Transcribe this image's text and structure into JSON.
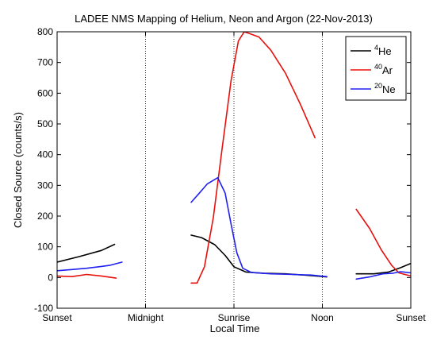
{
  "chart_data": {
    "type": "line",
    "title": "LADEE NMS Mapping of Helium, Neon and Argon (22-Nov-2013)",
    "xlabel": "Local Time",
    "ylabel": "Closed Source (counts/s)",
    "xlim": [
      0,
      24
    ],
    "ylim": [
      -100,
      800
    ],
    "xticks": [
      {
        "x": 0,
        "label": "Sunset"
      },
      {
        "x": 6,
        "label": "Midnight"
      },
      {
        "x": 12,
        "label": "Sunrise"
      },
      {
        "x": 18,
        "label": "Noon"
      },
      {
        "x": 24,
        "label": "Sunset"
      }
    ],
    "yticks": [
      -100,
      0,
      100,
      200,
      300,
      400,
      500,
      600,
      700,
      800
    ],
    "vertical_grid": true,
    "legend": "top-right",
    "series": [
      {
        "name": "4He",
        "sup": "4",
        "element": "He",
        "color": "#000000",
        "segments": [
          [
            [
              0,
              50
            ],
            [
              1.5,
              68
            ],
            [
              3,
              88
            ],
            [
              3.9,
              108
            ]
          ],
          [
            [
              9.1,
              138
            ],
            [
              9.8,
              130
            ],
            [
              10.7,
              107
            ],
            [
              11.4,
              72
            ],
            [
              12,
              35
            ],
            [
              12.8,
              18
            ],
            [
              14,
              14
            ],
            [
              15.5,
              12
            ],
            [
              17,
              7
            ],
            [
              18.3,
              2
            ]
          ],
          [
            [
              20.3,
              12
            ],
            [
              21.5,
              12
            ],
            [
              22.5,
              18
            ],
            [
              23.3,
              32
            ],
            [
              24.1,
              48
            ]
          ]
        ]
      },
      {
        "name": "40Ar",
        "sup": "40",
        "element": "Ar",
        "color": "#e8100c",
        "segments": [
          [
            [
              0,
              5
            ],
            [
              1,
              3
            ],
            [
              2,
              10
            ],
            [
              3,
              5
            ],
            [
              4,
              -2
            ]
          ],
          [
            [
              9.1,
              -18
            ],
            [
              9.5,
              -18
            ],
            [
              10,
              35
            ],
            [
              10.6,
              195
            ],
            [
              11.2,
              420
            ],
            [
              11.8,
              640
            ],
            [
              12.3,
              770
            ],
            [
              12.7,
              800
            ],
            [
              13,
              795
            ],
            [
              13.7,
              783
            ],
            [
              14.5,
              740
            ],
            [
              15.5,
              665
            ],
            [
              16.5,
              565
            ],
            [
              17.5,
              455
            ]
          ],
          [
            [
              20.3,
              222
            ],
            [
              21.2,
              160
            ],
            [
              22,
              90
            ],
            [
              22.7,
              40
            ],
            [
              23.2,
              15
            ],
            [
              24,
              5
            ]
          ]
        ]
      },
      {
        "name": "20Ne",
        "sup": "20",
        "element": "Ne",
        "color": "#2020f0",
        "segments": [
          [
            [
              0,
              22
            ],
            [
              1,
              26
            ],
            [
              2,
              30
            ],
            [
              3,
              36
            ],
            [
              3.6,
              40
            ],
            [
              4.4,
              50
            ]
          ],
          [
            [
              9.1,
              245
            ],
            [
              9.6,
              272
            ],
            [
              10.2,
              305
            ],
            [
              10.9,
              325
            ],
            [
              11.4,
              275
            ],
            [
              11.8,
              175
            ],
            [
              12.2,
              80
            ],
            [
              12.6,
              30
            ],
            [
              13.2,
              16
            ],
            [
              14.5,
              12
            ],
            [
              16,
              10
            ],
            [
              17.2,
              8
            ],
            [
              18.3,
              3
            ]
          ],
          [
            [
              20.3,
              -5
            ],
            [
              21.2,
              2
            ],
            [
              22.1,
              12
            ],
            [
              22.8,
              14
            ],
            [
              23.3,
              19
            ],
            [
              24,
              15
            ]
          ]
        ]
      }
    ]
  }
}
